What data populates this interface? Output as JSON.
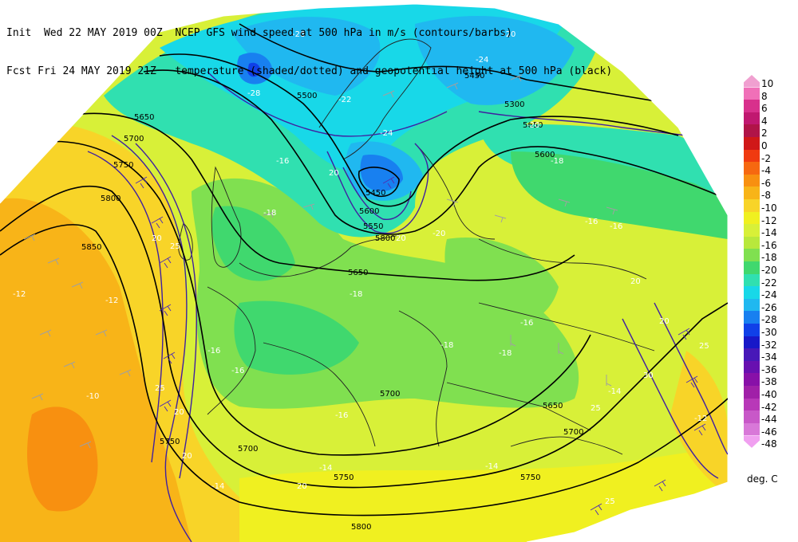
{
  "header": {
    "line1": "Init  Wed 22 MAY 2019 00Z  NCEP GFS wind speed at 500 hPa in m/s (contours/barbs)",
    "line2": "Fcst Fri 24 MAY 2019 21Z   temperature (shaded/dotted) and geopotential height at 500 hPa (black)"
  },
  "legend": {
    "units": "deg. C",
    "items": [
      {
        "label": "10",
        "color": "#f0a0d0"
      },
      {
        "label": "8",
        "color": "#f070b8"
      },
      {
        "label": "6",
        "color": "#d8308c"
      },
      {
        "label": "4",
        "color": "#c01870"
      },
      {
        "label": "2",
        "color": "#b01448"
      },
      {
        "label": "0",
        "color": "#d01818"
      },
      {
        "label": "-2",
        "color": "#f03a10"
      },
      {
        "label": "-4",
        "color": "#f66810"
      },
      {
        "label": "-6",
        "color": "#f89010"
      },
      {
        "label": "-8",
        "color": "#f8b418"
      },
      {
        "label": "-10",
        "color": "#f8d428"
      },
      {
        "label": "-12",
        "color": "#f0f020"
      },
      {
        "label": "-14",
        "color": "#d8f038"
      },
      {
        "label": "-16",
        "color": "#b8e83c"
      },
      {
        "label": "-18",
        "color": "#80e050"
      },
      {
        "label": "-20",
        "color": "#40d86e"
      },
      {
        "label": "-22",
        "color": "#30e0b0"
      },
      {
        "label": "-24",
        "color": "#18d8e8"
      },
      {
        "label": "-26",
        "color": "#20b8f0"
      },
      {
        "label": "-28",
        "color": "#1880f0"
      },
      {
        "label": "-30",
        "color": "#1040e8"
      },
      {
        "label": "-32",
        "color": "#1818c8"
      },
      {
        "label": "-34",
        "color": "#4818b8"
      },
      {
        "label": "-36",
        "color": "#6810b0"
      },
      {
        "label": "-38",
        "color": "#8810a8"
      },
      {
        "label": "-40",
        "color": "#a020a8"
      },
      {
        "label": "-42",
        "color": "#b838b8"
      },
      {
        "label": "-44",
        "color": "#c858c8"
      },
      {
        "label": "-46",
        "color": "#d878d8"
      },
      {
        "label": "-48",
        "color": "#f0a0f0"
      }
    ]
  },
  "map": {
    "height_labels": [
      "5450",
      "5500",
      "5300",
      "5650",
      "5600",
      "5650",
      "5700",
      "5750",
      "5800",
      "5850",
      "5450",
      "5550",
      "5650",
      "5700",
      "5750",
      "5800",
      "5600",
      "5700",
      "5650",
      "5750",
      "5700",
      "5750",
      "5800"
    ],
    "temp_labels": [
      "-28",
      "-26",
      "-24",
      "-22",
      "-20",
      "-20",
      "-18",
      "-16",
      "-18",
      "-16",
      "-16",
      "-14",
      "-12",
      "-10",
      "-12",
      "-16",
      "-18",
      "-18",
      "-16",
      "-14",
      "-14",
      "-12",
      "-16",
      "-24",
      "-20",
      "-18",
      "-16",
      "-14"
    ],
    "wind_labels": [
      "20",
      "25",
      "25",
      "20",
      "20",
      "20",
      "25",
      "30",
      "25",
      "20",
      "20",
      "25",
      "20",
      "20"
    ]
  }
}
